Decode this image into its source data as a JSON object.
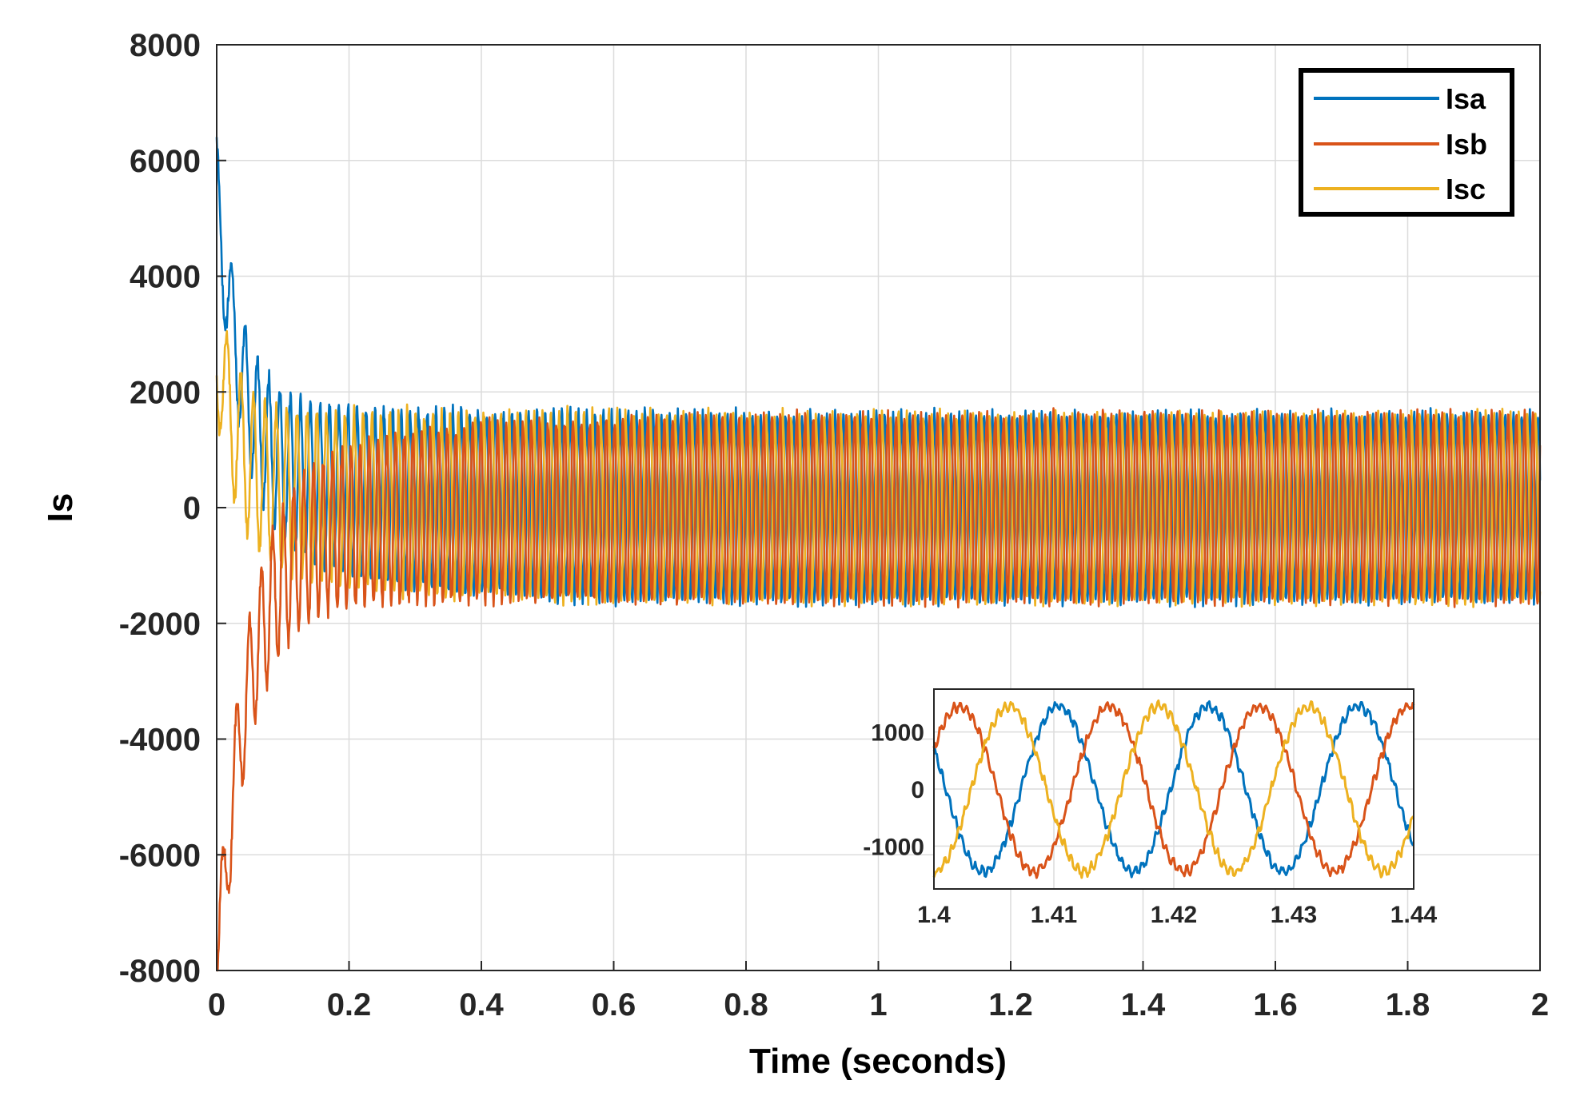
{
  "chart_data": {
    "type": "line",
    "title": "",
    "xlabel": "Time (seconds)",
    "ylabel": "Is",
    "xlim": [
      0,
      2
    ],
    "ylim": [
      -8000,
      8000
    ],
    "grid": true,
    "x_ticks": [
      0,
      0.2,
      0.4,
      0.6,
      0.8,
      1,
      1.2,
      1.4,
      1.6,
      1.8,
      2
    ],
    "x_tick_labels": [
      "0",
      "0.2",
      "0.4",
      "0.6",
      "0.8",
      "1",
      "1.2",
      "1.4",
      "1.6",
      "1.8",
      "2"
    ],
    "y_ticks": [
      -8000,
      -6000,
      -4000,
      -2000,
      0,
      2000,
      4000,
      6000,
      8000
    ],
    "y_tick_labels": [
      "-8000",
      "-6000",
      "-4000",
      "-2000",
      "0",
      "2000",
      "4000",
      "6000",
      "8000"
    ],
    "legend_position": "top-right",
    "series": [
      {
        "name": "Isa",
        "color": "#0072BD",
        "phase_deg": 0,
        "peak_start": 6200,
        "steady_amplitude": 1600
      },
      {
        "name": "Isb",
        "color": "#D95319",
        "phase_deg": -120,
        "peak_start": -7700,
        "steady_amplitude": 1600
      },
      {
        "name": "Isc",
        "color": "#EDB120",
        "phase_deg": 120,
        "peak_start": 3600,
        "steady_amplitude": 1600
      }
    ],
    "inset": {
      "xlim": [
        1.4,
        1.44
      ],
      "ylim": [
        -1750,
        1750
      ],
      "x_ticks": [
        1.4,
        1.41,
        1.42,
        1.43,
        1.44
      ],
      "x_tick_labels": [
        "1.4",
        "1.41",
        "1.42",
        "1.43",
        "1.44"
      ],
      "y_ticks": [
        -1000,
        0,
        1000
      ],
      "y_tick_labels": [
        "-1000",
        "0",
        "1000"
      ],
      "frequency_hz": 80,
      "amplitude": 1450,
      "series": [
        {
          "name": "Isa",
          "color": "#0072BD",
          "phase_deg": 0,
          "value_at_start": 700
        },
        {
          "name": "Isb",
          "color": "#D95319",
          "phase_deg": -120,
          "value_at_start": 700
        },
        {
          "name": "Isc",
          "color": "#EDB120",
          "phase_deg": 120,
          "value_at_start": -1450
        }
      ]
    }
  }
}
